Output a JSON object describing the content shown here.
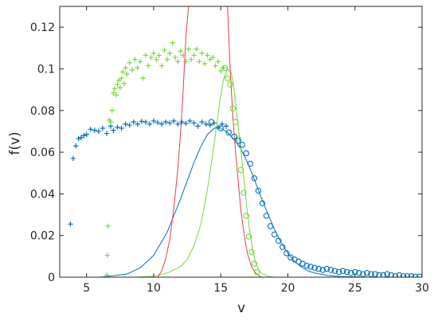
{
  "chart_data": {
    "type": "scatter",
    "title": "",
    "xlabel": "v",
    "ylabel": "f(v)",
    "xlim": [
      3,
      30
    ],
    "ylim": [
      0,
      0.13
    ],
    "xticks": [
      5,
      10,
      15,
      20,
      25,
      30
    ],
    "yticks": [
      0,
      0.02,
      0.04,
      0.06,
      0.08,
      0.1,
      0.12
    ],
    "ytick_labels": [
      "0",
      "0.02",
      "0.04",
      "0.06",
      "0.08",
      "0.1",
      "0.12"
    ],
    "grid": false,
    "legend": "none",
    "colors": {
      "blue": "#0072BD",
      "green": "#77D83A",
      "red": "#F03C3C",
      "axis": "#262626"
    },
    "series": [
      {
        "marker": "plus",
        "color": "blue",
        "x": [
          3.8,
          4.0,
          4.2,
          4.4,
          4.6,
          4.8,
          5.0,
          5.3,
          5.6,
          5.9,
          6.2,
          6.5,
          6.8,
          7.0,
          7.3,
          7.6,
          7.9,
          8.2,
          8.5,
          8.8,
          9.1,
          9.4,
          9.7,
          10.0,
          10.3,
          10.6,
          10.9,
          11.2,
          11.5,
          11.8,
          12.1,
          12.4,
          12.7,
          13.0,
          13.3,
          13.6,
          13.9,
          14.2,
          14.5,
          14.8,
          15.1,
          15.4
        ],
        "y": [
          0.0255,
          0.057,
          0.063,
          0.0665,
          0.067,
          0.068,
          0.0685,
          0.071,
          0.0705,
          0.07,
          0.0715,
          0.069,
          0.0725,
          0.0705,
          0.072,
          0.0715,
          0.0735,
          0.073,
          0.0745,
          0.0735,
          0.0748,
          0.0745,
          0.0735,
          0.075,
          0.0742,
          0.0735,
          0.0745,
          0.074,
          0.075,
          0.0735,
          0.0745,
          0.0738,
          0.075,
          0.074,
          0.0725,
          0.0745,
          0.0735,
          0.073,
          0.074,
          0.072,
          0.0735,
          0.0725
        ]
      },
      {
        "marker": "plus",
        "color": "green",
        "x": [
          6.5,
          6.55,
          6.6,
          6.7,
          6.8,
          6.9,
          7.0,
          7.1,
          7.2,
          7.3,
          7.4,
          7.5,
          7.6,
          7.7,
          7.8,
          7.9,
          8.0,
          8.2,
          8.4,
          8.6,
          8.8,
          9.0,
          9.2,
          9.4,
          9.6,
          9.8,
          10.0,
          10.2,
          10.4,
          10.6,
          10.8,
          11.0,
          11.2,
          11.4,
          11.6,
          11.8,
          12.0,
          12.2,
          12.4,
          12.6,
          12.8,
          13.0,
          13.2,
          13.4,
          13.6,
          13.8,
          14.0,
          14.2,
          14.4,
          14.6,
          14.8,
          15.0,
          15.2
        ],
        "y": [
          0.001,
          0.0105,
          0.0245,
          0.0755,
          0.0745,
          0.08,
          0.0885,
          0.0905,
          0.0875,
          0.0925,
          0.0945,
          0.091,
          0.0955,
          0.0985,
          0.093,
          0.1005,
          0.0975,
          0.103,
          0.0995,
          0.1045,
          0.1005,
          0.1035,
          0.0955,
          0.1065,
          0.1015,
          0.1055,
          0.1075,
          0.1045,
          0.1065,
          0.1015,
          0.109,
          0.1045,
          0.1075,
          0.1125,
          0.1055,
          0.1035,
          0.1085,
          0.1065,
          0.1035,
          0.1095,
          0.1045,
          0.1065,
          0.1095,
          0.1035,
          0.1075,
          0.1025,
          0.1065,
          0.1045,
          0.1055,
          0.1015,
          0.1035,
          0.099,
          0.1005
        ]
      },
      {
        "marker": "circle",
        "color": "green",
        "x": [
          15.3,
          15.5,
          15.7,
          15.9,
          16.1,
          16.3,
          16.5,
          16.7,
          16.9,
          17.1,
          17.3,
          17.5,
          17.7
        ],
        "y": [
          0.1005,
          0.0955,
          0.0925,
          0.081,
          0.0745,
          0.0665,
          0.0515,
          0.0405,
          0.0295,
          0.0195,
          0.012,
          0.0065,
          0.0025
        ]
      },
      {
        "marker": "circle",
        "color": "blue",
        "x": [
          14.3,
          15.0,
          15.6,
          16.0,
          16.3,
          16.6,
          16.9,
          17.2,
          17.5,
          17.8,
          18.1,
          18.4,
          18.7,
          19.0,
          19.3,
          19.6,
          19.9,
          20.2,
          20.5,
          20.8,
          21.1,
          21.4,
          21.7,
          22.0,
          22.3,
          22.6,
          22.9,
          23.2,
          23.5,
          23.8,
          24.1,
          24.4,
          24.7,
          25.0,
          25.3,
          25.6,
          25.9,
          26.2,
          26.5,
          26.8,
          27.1,
          27.4,
          27.7,
          28.0,
          28.3,
          28.6,
          28.9,
          29.2,
          29.5,
          29.8
        ],
        "y": [
          0.0745,
          0.0715,
          0.0695,
          0.0675,
          0.0655,
          0.0635,
          0.0595,
          0.0545,
          0.0475,
          0.0415,
          0.0355,
          0.0295,
          0.0245,
          0.0205,
          0.0175,
          0.0145,
          0.0115,
          0.0095,
          0.0085,
          0.0075,
          0.0065,
          0.0055,
          0.005,
          0.0045,
          0.004,
          0.0035,
          0.004,
          0.0035,
          0.003,
          0.0025,
          0.003,
          0.0025,
          0.002,
          0.0025,
          0.002,
          0.0015,
          0.002,
          0.0015,
          0.0015,
          0.001,
          0.001,
          0.0015,
          0.001,
          0.0005,
          0.001,
          0.0005,
          0.0005,
          0.0005,
          0.0003,
          0.0003
        ]
      },
      {
        "marker": "line",
        "color": "blue",
        "x": [
          6.0,
          8.0,
          9.0,
          10.0,
          11.0,
          12.0,
          13.0,
          13.5,
          14.0,
          14.5,
          15.0,
          15.5,
          16.0,
          16.5,
          17.0,
          17.5,
          18.0,
          18.5,
          19.0,
          19.5,
          20.0,
          20.5,
          21.0,
          21.5,
          22.0,
          23.0,
          24.0,
          26.0,
          28.0,
          30.0
        ],
        "y": [
          0.0,
          0.0015,
          0.0045,
          0.0105,
          0.0215,
          0.0375,
          0.055,
          0.0625,
          0.0685,
          0.0715,
          0.0715,
          0.0695,
          0.066,
          0.0615,
          0.055,
          0.047,
          0.0385,
          0.0305,
          0.023,
          0.0165,
          0.0115,
          0.0075,
          0.005,
          0.003,
          0.002,
          0.0008,
          0.0003,
          0.0,
          0.0,
          0.0
        ]
      },
      {
        "marker": "line",
        "color": "green",
        "x": [
          8.5,
          10.0,
          11.0,
          12.0,
          12.5,
          13.0,
          13.5,
          13.8,
          14.0,
          14.3,
          14.6,
          14.9,
          15.2,
          15.5,
          15.8,
          16.0,
          16.2,
          16.5,
          16.8,
          17.0,
          17.2,
          17.4,
          17.6,
          17.8,
          18.0,
          18.5,
          19.0
        ],
        "y": [
          0.0,
          0.0005,
          0.002,
          0.005,
          0.0085,
          0.015,
          0.025,
          0.0345,
          0.042,
          0.0545,
          0.0685,
          0.083,
          0.095,
          0.1,
          0.098,
          0.09,
          0.078,
          0.061,
          0.042,
          0.03,
          0.02,
          0.012,
          0.007,
          0.004,
          0.002,
          0.0005,
          0.0
        ]
      },
      {
        "marker": "line",
        "color": "red",
        "x": [
          10.3,
          10.6,
          10.9,
          11.2,
          11.5,
          11.8,
          12.0,
          12.2,
          12.4,
          12.6,
          15.5,
          15.7,
          15.9,
          16.1,
          16.3,
          16.5,
          16.8,
          17.0,
          17.3,
          17.6,
          18.0
        ],
        "y": [
          0.0,
          0.003,
          0.009,
          0.018,
          0.033,
          0.052,
          0.069,
          0.09,
          0.115,
          0.13,
          0.13,
          0.1,
          0.077,
          0.06,
          0.046,
          0.032,
          0.018,
          0.011,
          0.005,
          0.002,
          0.0
        ]
      }
    ]
  }
}
